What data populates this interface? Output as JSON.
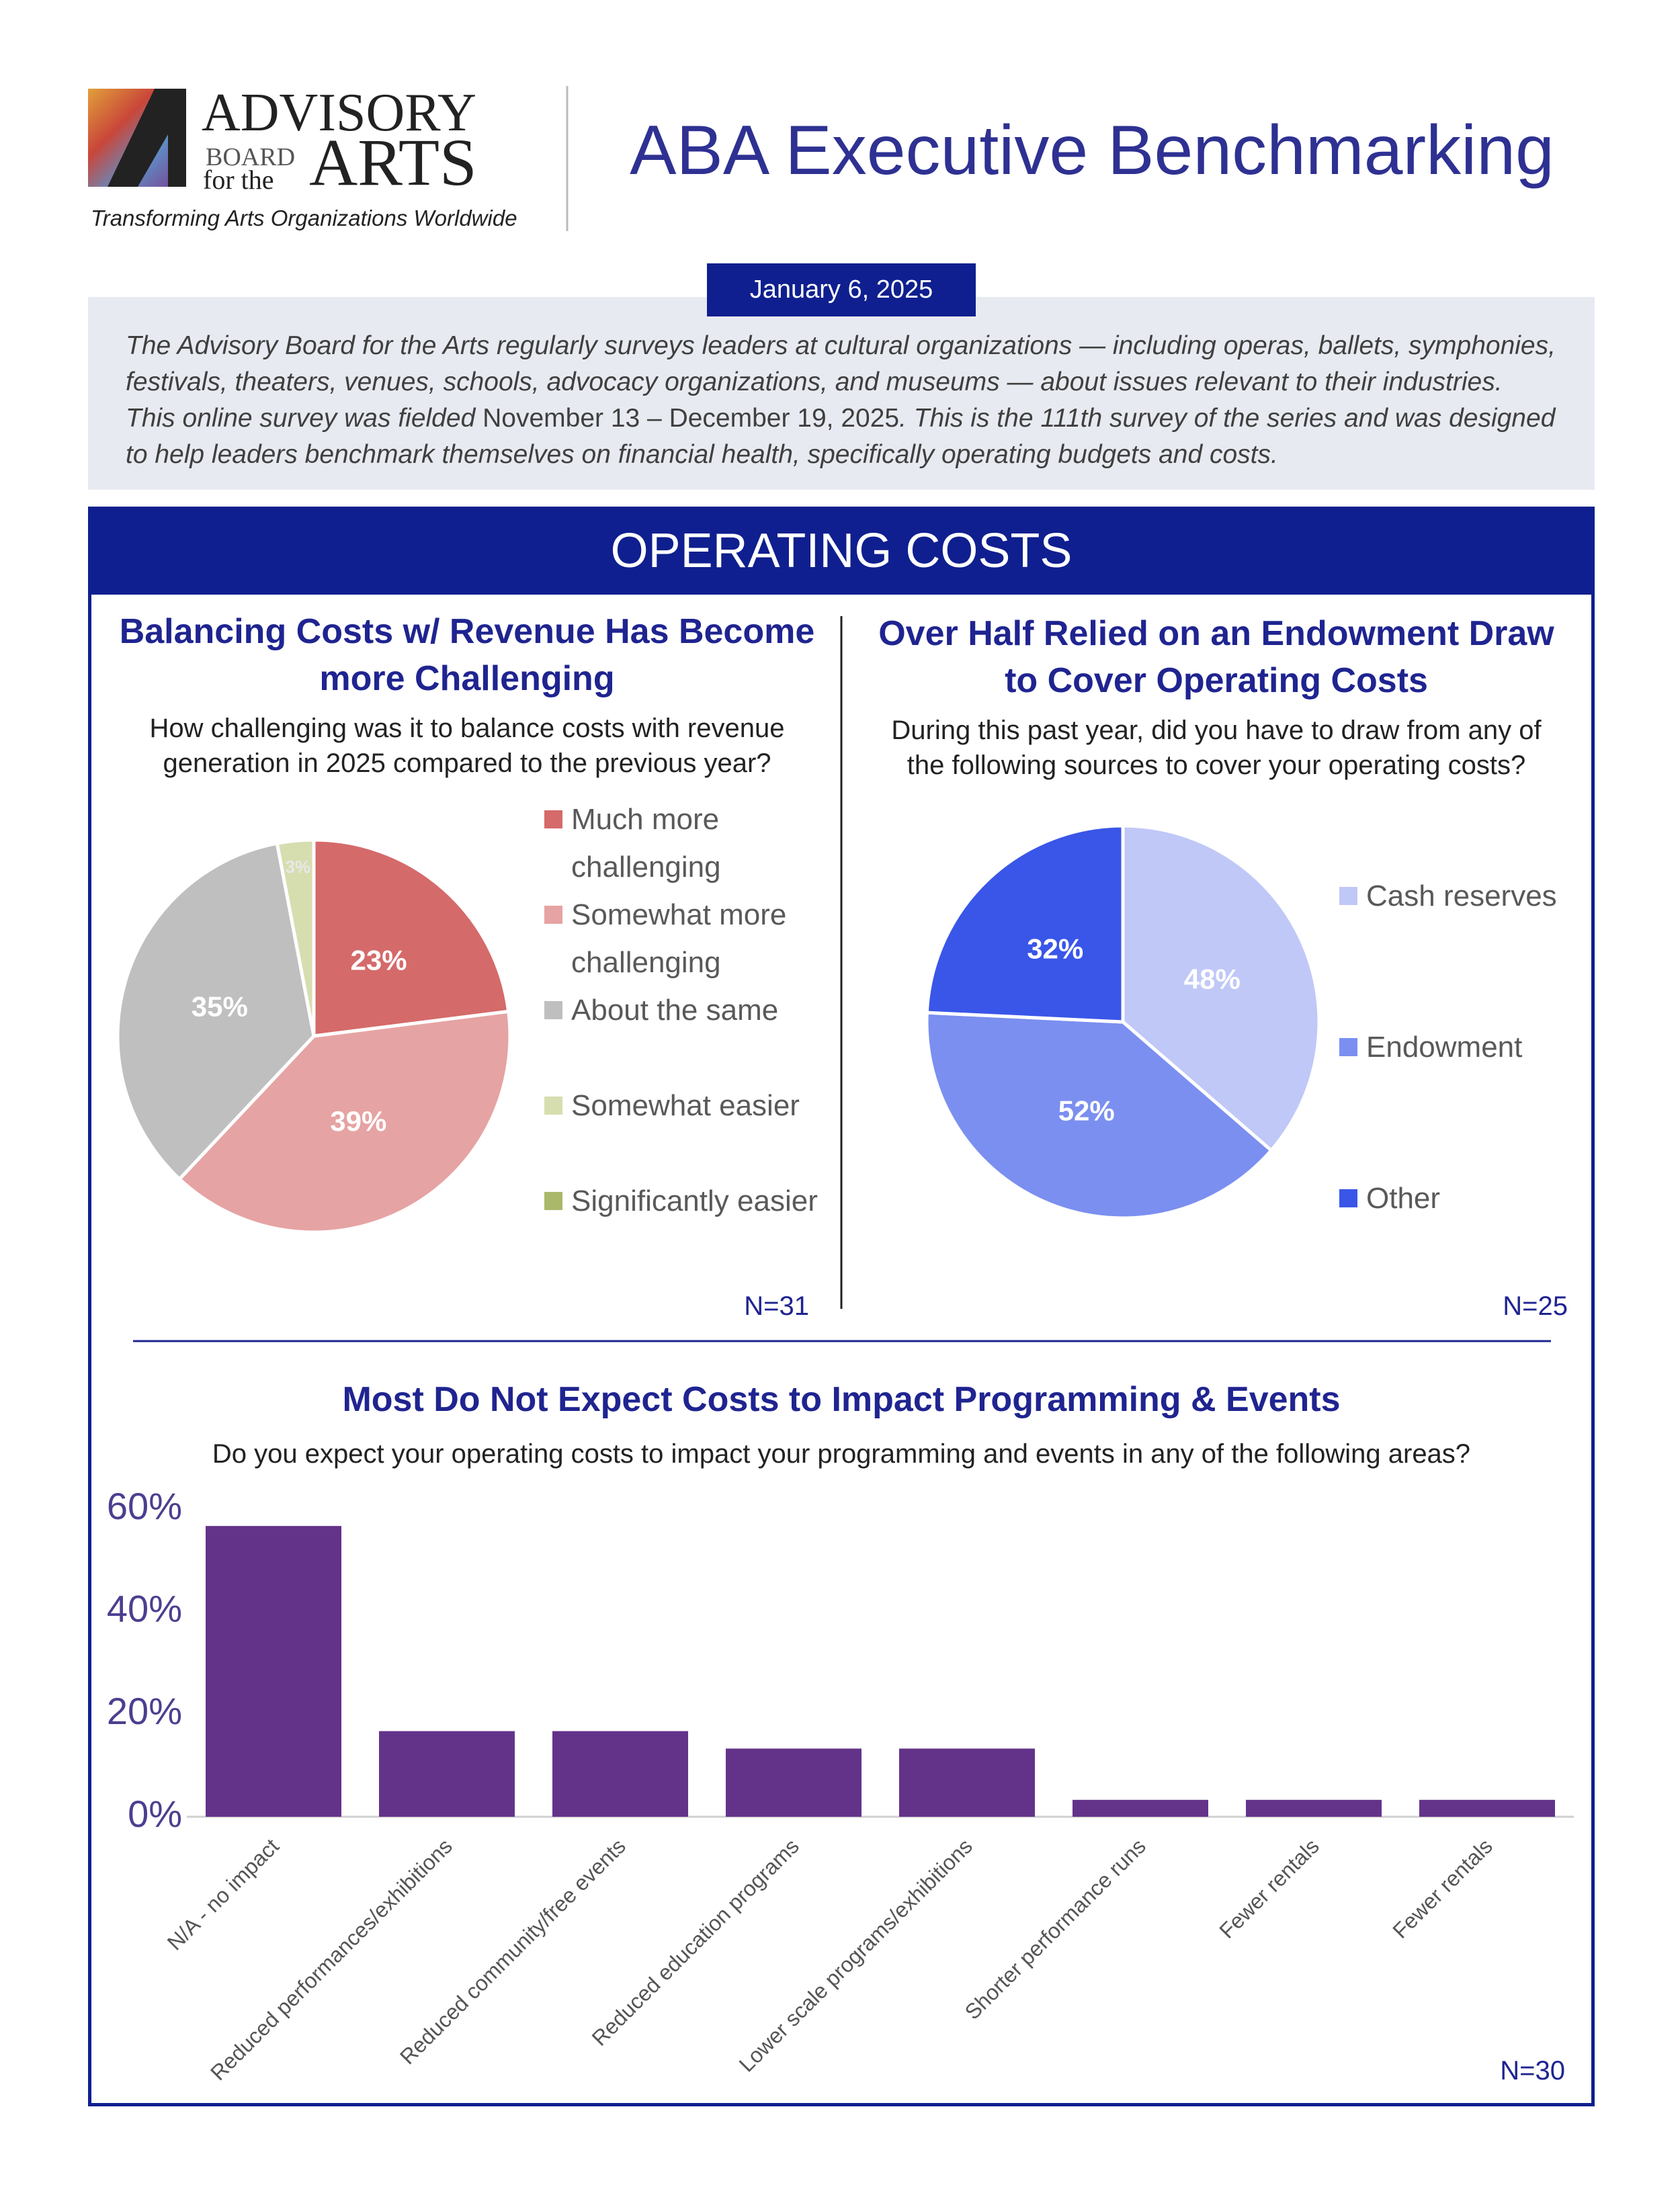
{
  "header": {
    "logo": {
      "line1": "ADVISORY",
      "line2": "BOARD",
      "line3": "for the",
      "line4": "ARTS",
      "tagline": "Transforming Arts Organizations Worldwide"
    },
    "title": "ABA Executive Benchmarking",
    "date": "January 6, 2025"
  },
  "intro": {
    "before": "The Advisory Board for the Arts regularly surveys leaders at cultural organizations — including operas, ballets, symphonies, festivals, theaters, venues, schools, advocacy organizations, and museums — about issues relevant to their industries. This online survey was fielded ",
    "dates": "November 13 – December 19, 2025",
    "after": ". This is the 111th survey of the series and was designed to help leaders benchmark themselves on financial health, specifically operating budgets and costs."
  },
  "section": {
    "title": "OPERATING COSTS"
  },
  "chart_data": [
    {
      "type": "pie",
      "title": "Balancing Costs w/ Revenue Has Become more Challenging",
      "subtitle": "How challenging was it to balance costs with revenue generation in 2025 compared to the previous year?",
      "categories": [
        "Much more challenging",
        "Somewhat more challenging",
        "About the same",
        "Somewhat easier",
        "Significantly easier"
      ],
      "values": [
        23,
        39,
        35,
        3,
        0
      ],
      "value_labels": [
        "23%",
        "39%",
        "35%",
        "3%",
        null
      ],
      "colors": [
        "#d56a6a",
        "#e6a3a3",
        "#bfbfbf",
        "#d6deb0",
        "#a9b86a"
      ],
      "note": "N=31"
    },
    {
      "type": "pie",
      "title": "Over Half Relied on an Endowment Draw to Cover Operating Costs",
      "subtitle": "During this past year, did you have to draw from any of the following sources to cover your operating costs?",
      "categories": [
        "Cash reserves",
        "Endowment",
        "Other"
      ],
      "values": [
        48,
        52,
        32
      ],
      "value_labels": [
        "48%",
        "52%",
        "32%"
      ],
      "colors": [
        "#c0c8f7",
        "#7b8ff0",
        "#3a56e8"
      ],
      "note": "N=25"
    },
    {
      "type": "bar",
      "title": "Most Do Not Expect Costs to Impact Programming & Events",
      "subtitle": "Do you expect your operating costs to impact your programming and events in any of the following areas?",
      "categories": [
        "N/A - no impact",
        "Reduced performances/exhibitions",
        "Reduced community/free events",
        "Reduced education programs",
        "Lower scale programs/exhibitions",
        "Shorter performance runs",
        "Fewer rentals",
        "Fewer rentals"
      ],
      "values": [
        56.7,
        16.7,
        16.7,
        13.3,
        13.3,
        3.3,
        3.3,
        3.3
      ],
      "color": "#63338a",
      "ylim": [
        0,
        60
      ],
      "yticks": [
        {
          "value": 0,
          "label": "0%"
        },
        {
          "value": 20,
          "label": "20%"
        },
        {
          "value": 40,
          "label": "40%"
        },
        {
          "value": 60,
          "label": "60%"
        }
      ],
      "note": "N=30"
    }
  ]
}
